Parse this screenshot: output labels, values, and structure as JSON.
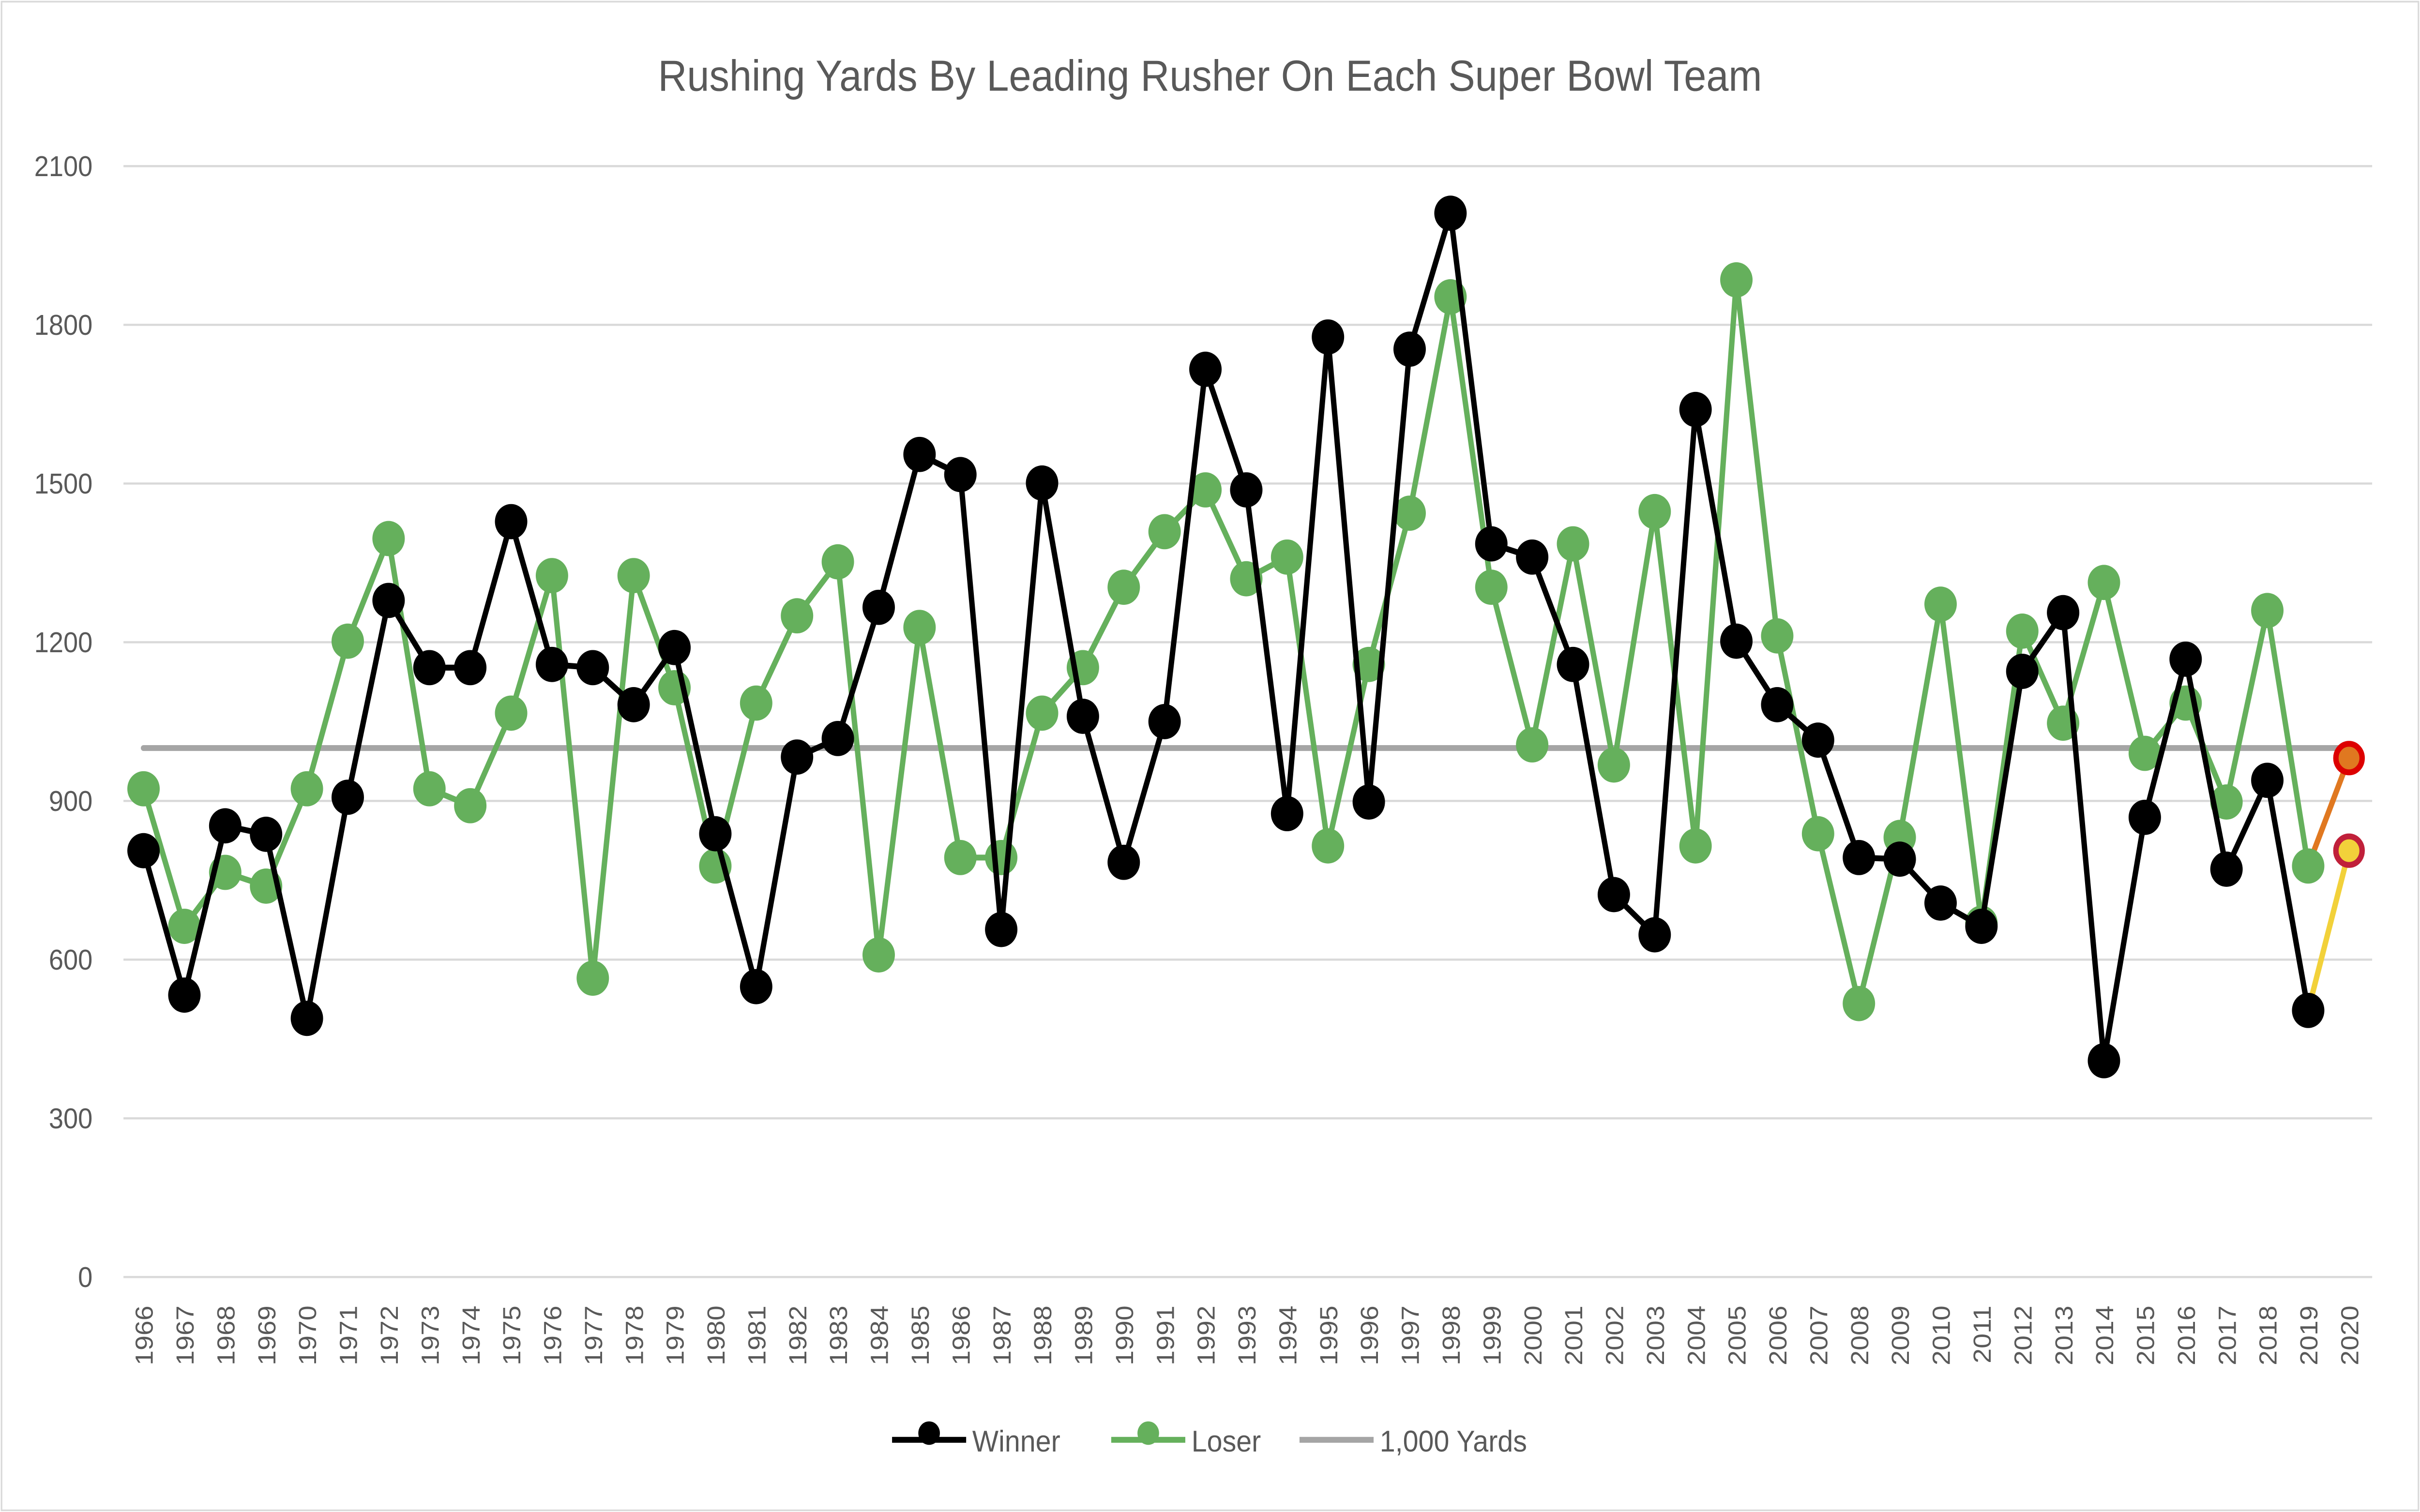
{
  "chart_data": {
    "type": "line",
    "title": "Rushing Yards By Leading Rusher On Each Super Bowl Team",
    "xlabel": "",
    "ylabel": "",
    "ylim": [
      0,
      2100
    ],
    "yticks": [
      0,
      300,
      600,
      900,
      1200,
      1500,
      1800,
      2100
    ],
    "ytick_labels": [
      "0",
      "300",
      "600",
      "900",
      "1200",
      "1500",
      "1800",
      "2100"
    ],
    "grid": true,
    "legend_position": "bottom",
    "x": [
      1966,
      1967,
      1968,
      1969,
      1970,
      1971,
      1972,
      1973,
      1974,
      1975,
      1976,
      1977,
      1978,
      1979,
      1980,
      1981,
      1982,
      1983,
      1984,
      1985,
      1986,
      1987,
      1988,
      1989,
      1990,
      1991,
      1992,
      1993,
      1994,
      1995,
      1996,
      1997,
      1998,
      1999,
      2000,
      2001,
      2002,
      2003,
      2004,
      2005,
      2006,
      2007,
      2008,
      2009,
      2010,
      2011,
      2012,
      2013,
      2014,
      2015,
      2016,
      2017,
      2018,
      2019,
      2020
    ],
    "x_labels": [
      "1966",
      "1967",
      "1968",
      "1969",
      "1970",
      "1971",
      "1972",
      "1973",
      "1974",
      "1975",
      "1976",
      "1977",
      "1978",
      "1979",
      "1980",
      "1981",
      "1982",
      "1983",
      "1984",
      "1985",
      "1986",
      "1987",
      "1988",
      "1989",
      "1990",
      "1991",
      "1992",
      "1993",
      "1994",
      "1995",
      "1996",
      "1997",
      "1998",
      "1999",
      "2000",
      "2001",
      "2002",
      "2003",
      "2004",
      "2005",
      "2006",
      "2007",
      "2008",
      "2009",
      "2010",
      "2011",
      "2012",
      "2013",
      "2014",
      "2015",
      "2016",
      "2017",
      "2018",
      "2019",
      "2020"
    ],
    "series": [
      {
        "name": "Winner",
        "color": "#000000",
        "x": [
          1966,
          1967,
          1968,
          1969,
          1970,
          1971,
          1972,
          1973,
          1974,
          1975,
          1976,
          1977,
          1978,
          1979,
          1980,
          1981,
          1982,
          1983,
          1984,
          1985,
          1986,
          1987,
          1988,
          1989,
          1990,
          1991,
          1992,
          1993,
          1994,
          1995,
          1996,
          1997,
          1998,
          1999,
          2000,
          2001,
          2002,
          2003,
          2004,
          2005,
          2006,
          2007,
          2008,
          2009,
          2010,
          2011,
          2012,
          2013,
          2014,
          2015,
          2016,
          2017,
          2018,
          2019
        ],
        "values": [
          806,
          533,
          853,
          837,
          489,
          907,
          1279,
          1152,
          1152,
          1428,
          1158,
          1152,
          1082,
          1190,
          838,
          549,
          983,
          1018,
          1266,
          1555,
          1517,
          657,
          1501,
          1060,
          784,
          1050,
          1716,
          1488,
          876,
          1777,
          898,
          1754,
          2011,
          1386,
          1361,
          1158,
          723,
          647,
          1640,
          1202,
          1082,
          1015,
          793,
          790,
          707,
          663,
          1145,
          1256,
          409,
          869,
          1168,
          771,
          939,
          504
        ]
      },
      {
        "name": "Loser",
        "color": "#65B05C",
        "x": [
          1966,
          1967,
          1968,
          1969,
          1970,
          1971,
          1972,
          1973,
          1974,
          1975,
          1976,
          1977,
          1978,
          1979,
          1980,
          1981,
          1982,
          1983,
          1984,
          1985,
          1986,
          1987,
          1988,
          1989,
          1990,
          1991,
          1992,
          1993,
          1994,
          1995,
          1996,
          1997,
          1998,
          1999,
          2000,
          2001,
          2002,
          2003,
          2004,
          2005,
          2006,
          2007,
          2008,
          2009,
          2010,
          2011,
          2012,
          2013,
          2014,
          2015,
          2016,
          2017,
          2018,
          2019
        ],
        "values": [
          923,
          663,
          765,
          739,
          923,
          1202,
          1396,
          923,
          891,
          1066,
          1326,
          565,
          1326,
          1114,
          777,
          1085,
          1250,
          1352,
          609,
          1228,
          793,
          793,
          1066,
          1152,
          1304,
          1409,
          1488,
          1320,
          1361,
          815,
          1158,
          1444,
          1853,
          1304,
          1006,
          1386,
          968,
          1447,
          815,
          1885,
          1212,
          838,
          517,
          831,
          1272,
          669,
          1221,
          1047,
          1313,
          990,
          1085,
          898,
          1260,
          777
        ]
      },
      {
        "name": "1,000 Yards",
        "color": "#A5A5A5",
        "x": [
          1966,
          2020
        ],
        "values": [
          1000,
          1000
        ]
      },
      {
        "color": "#E07820",
        "marker_edge": "#DD0000",
        "x": [
          2019,
          2020
        ],
        "values": [
          777,
          981
        ]
      },
      {
        "color": "#F2D13A",
        "marker_edge": "#C0203A",
        "x": [
          2019,
          2020
        ],
        "values": [
          504,
          806
        ]
      }
    ]
  }
}
